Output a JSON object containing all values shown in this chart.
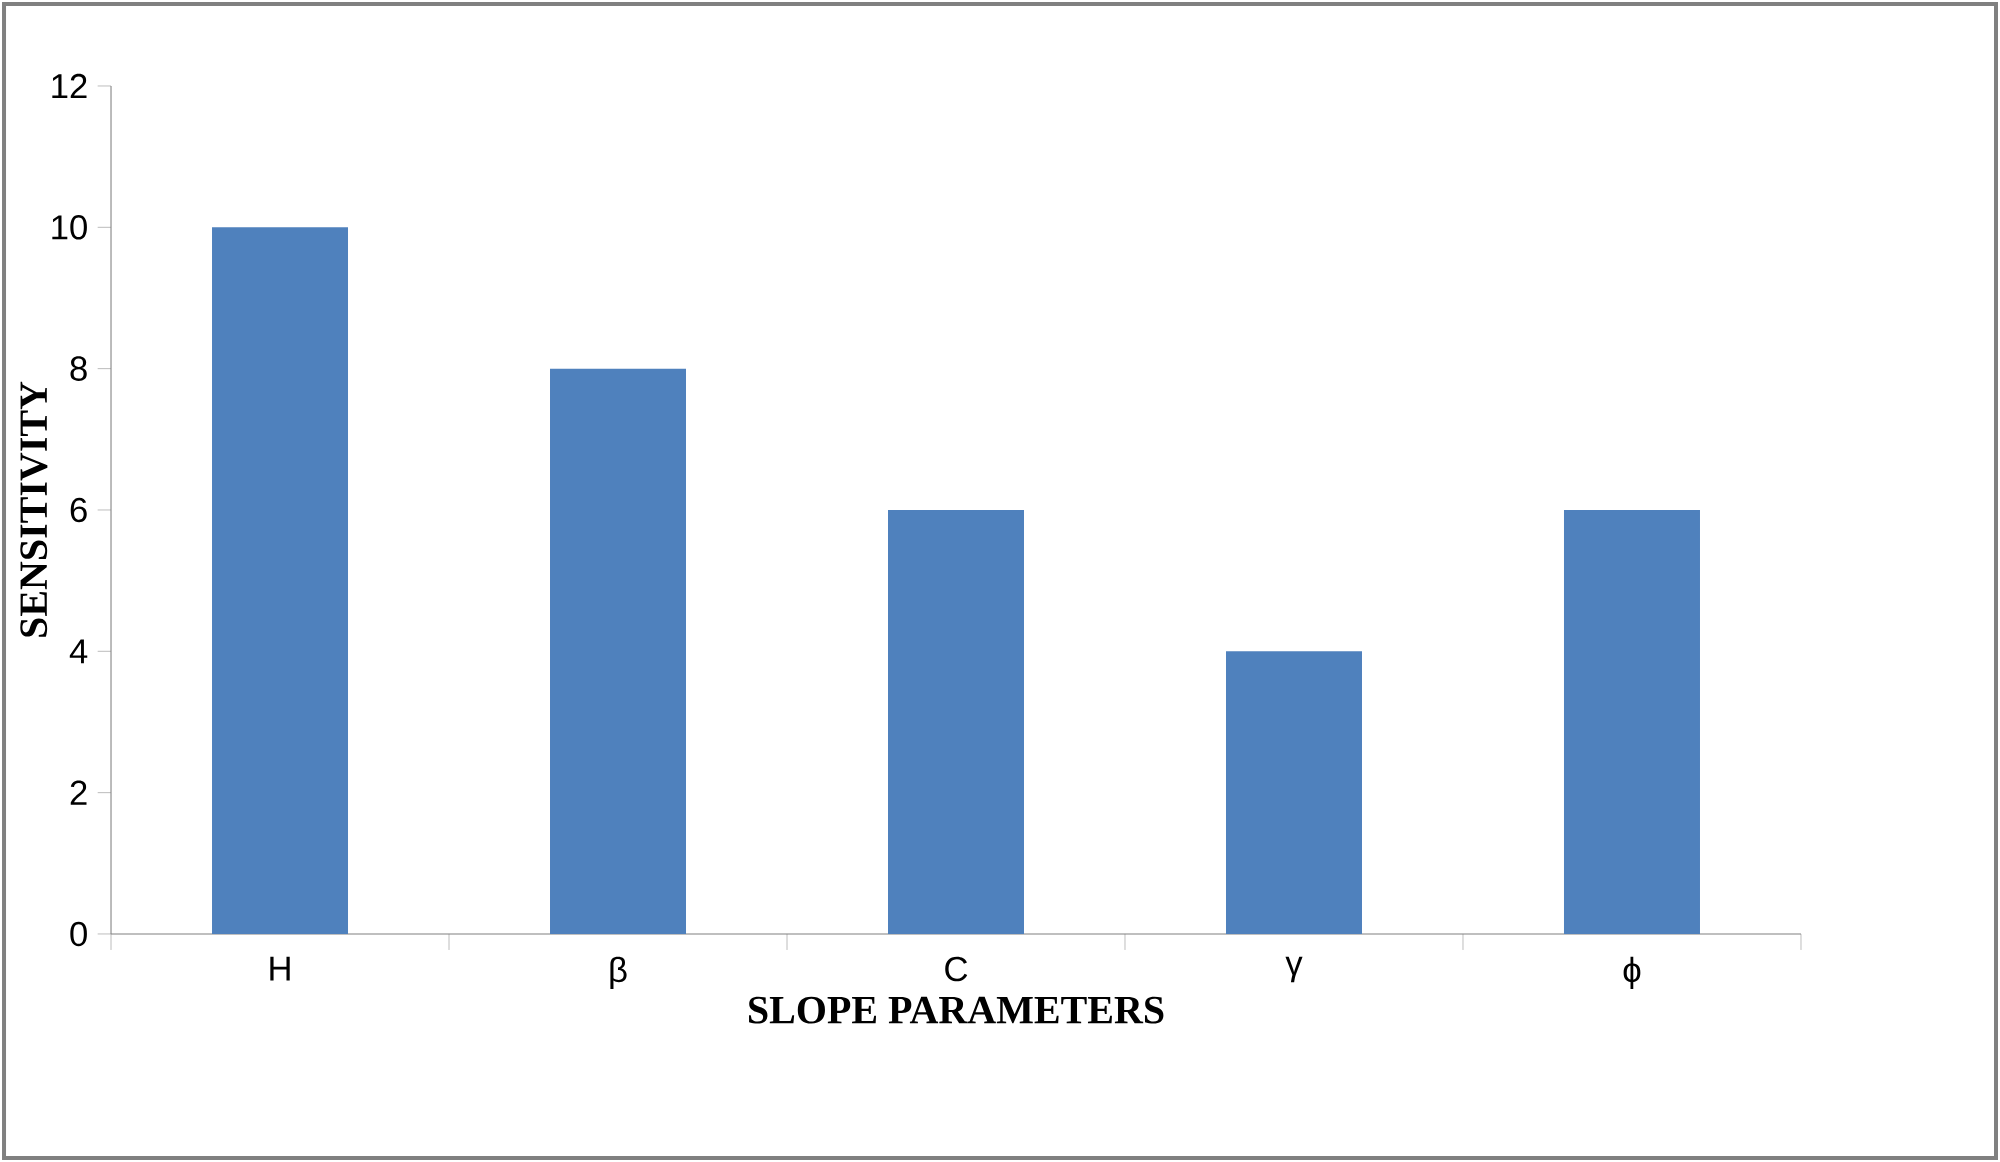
{
  "chart_data": {
    "type": "bar",
    "xlabel": "SLOPE PARAMETERS",
    "ylabel": "SENSITIVITY",
    "categories": [
      "H",
      "β",
      "C",
      "γ",
      "ϕ"
    ],
    "values": [
      10,
      8,
      6,
      4,
      6
    ],
    "color": "#4f81bd",
    "ylim": [
      0,
      12
    ],
    "yticks": [
      0,
      2,
      4,
      6,
      8,
      10,
      12
    ],
    "grid": false
  }
}
